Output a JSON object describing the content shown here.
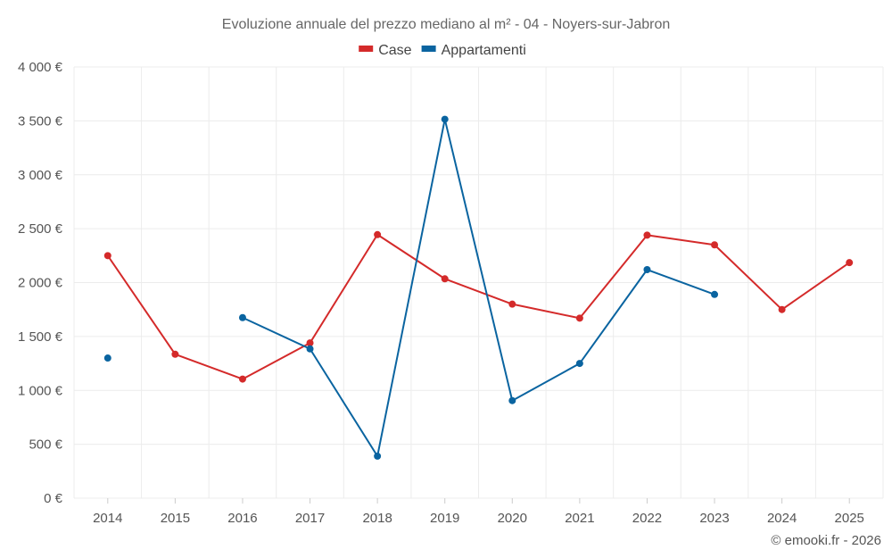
{
  "chart_data": {
    "type": "line",
    "title": "Evoluzione annuale del prezzo mediano al m² - 04 - Noyers-sur-Jabron",
    "categories": [
      "2014",
      "2015",
      "2016",
      "2017",
      "2018",
      "2019",
      "2020",
      "2021",
      "2022",
      "2023",
      "2024",
      "2025"
    ],
    "series": [
      {
        "name": "Case",
        "color": "#d42a2a",
        "values": [
          2250,
          1335,
          1105,
          1440,
          2445,
          2035,
          1800,
          1670,
          2440,
          2350,
          1750,
          2185
        ]
      },
      {
        "name": "Appartamenti",
        "color": "#0a64a0",
        "values": [
          1300,
          null,
          1675,
          1385,
          390,
          3515,
          905,
          1250,
          2120,
          1890,
          null,
          null
        ]
      }
    ],
    "ylim": [
      0,
      4000
    ],
    "yticks": [
      0,
      500,
      1000,
      1500,
      2000,
      2500,
      3000,
      3500,
      4000
    ],
    "ytick_labels": [
      "0 €",
      "500 €",
      "1 000 €",
      "1 500 €",
      "2 000 €",
      "2 500 €",
      "3 000 €",
      "3 500 €",
      "4 000 €"
    ],
    "xlabel": "",
    "ylabel": "",
    "legend_position": "top-center",
    "grid": true
  },
  "credit": "© emooki.fr - 2026"
}
